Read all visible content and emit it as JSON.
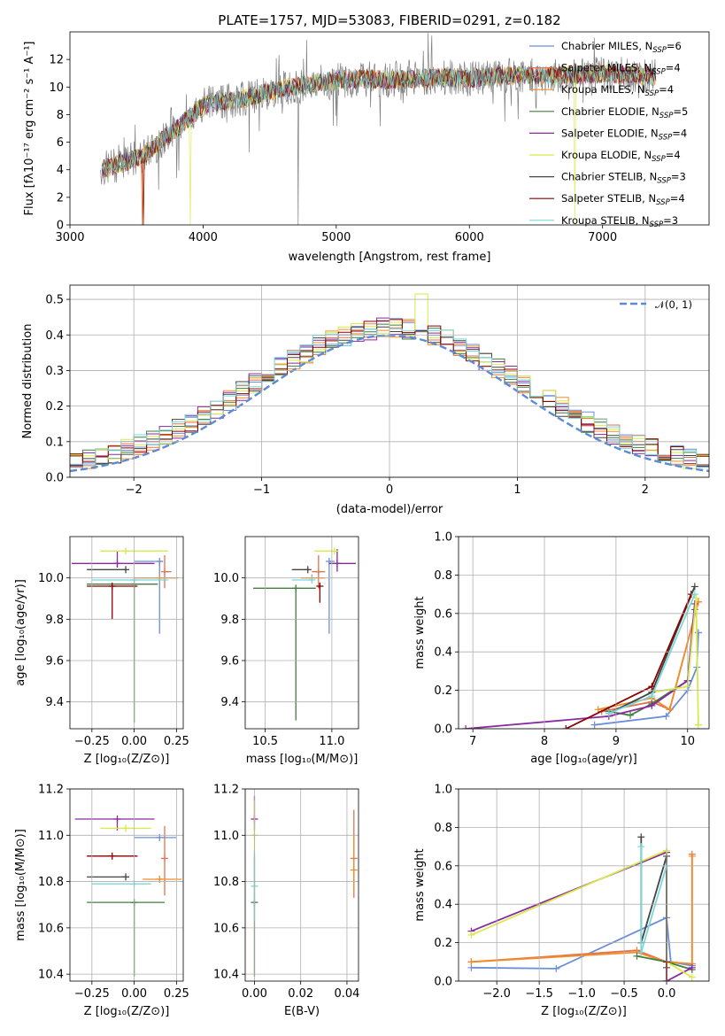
{
  "figure": {
    "title": "PLATE=1757, MJD=53083, FIBERID=0291, z=0.182"
  },
  "colors": {
    "Chabrier MILES": "#6a8fd8",
    "Salpeter MILES": "#e2724f",
    "Kroupa MILES": "#f28c28",
    "Chabrier ELODIE": "#3f7f3f",
    "Salpeter ELODIE": "#8b2a9e",
    "Kroupa ELODIE": "#d9e84a",
    "Chabrier STELIB": "#444444",
    "Salpeter STELIB": "#8b0000",
    "Kroupa STELIB": "#7ad8d8",
    "data": "#808080",
    "gauss": "#5b8bd6"
  },
  "chart_data": [
    {
      "id": "spectrum",
      "type": "line",
      "title": "PLATE=1757, MJD=53083, FIBERID=0291, z=0.182",
      "xlabel": "wavelength [Angstrom, rest frame]",
      "ylabel": "Flux [fλ10⁻¹⁷ erg cm⁻² s⁻¹ A⁻¹]",
      "xlim": [
        3000,
        7800
      ],
      "ylim": [
        0,
        14
      ],
      "xticks": [
        "3000",
        "4000",
        "5000",
        "6000",
        "7000"
      ],
      "yticks": [
        "0",
        "2",
        "4",
        "6",
        "8",
        "10",
        "12"
      ],
      "grid": false,
      "legend": "right",
      "legend_entries": [
        {
          "label": "Chabrier MILES, N",
          "sub": "SSP",
          "suffix": "=6",
          "series": "Chabrier MILES"
        },
        {
          "label": "Salpeter MILES, N",
          "sub": "SSP",
          "suffix": "=4",
          "series": "Salpeter MILES"
        },
        {
          "label": "Kroupa MILES, N",
          "sub": "SSP",
          "suffix": "=4",
          "series": "Kroupa MILES"
        },
        {
          "label": "Chabrier ELODIE, N",
          "sub": "SSP",
          "suffix": "=5",
          "series": "Chabrier ELODIE"
        },
        {
          "label": "Salpeter ELODIE, N",
          "sub": "SSP",
          "suffix": "=4",
          "series": "Salpeter ELODIE"
        },
        {
          "label": "Kroupa ELODIE, N",
          "sub": "SSP",
          "suffix": "=4",
          "series": "Kroupa ELODIE"
        },
        {
          "label": "Chabrier STELIB, N",
          "sub": "SSP",
          "suffix": "=3",
          "series": "Chabrier STELIB"
        },
        {
          "label": "Salpeter STELIB, N",
          "sub": "SSP",
          "suffix": "=4",
          "series": "Salpeter STELIB"
        },
        {
          "label": "Kroupa STELIB, N",
          "sub": "SSP",
          "suffix": "=3",
          "series": "Kroupa STELIB"
        }
      ],
      "continuum": {
        "x": [
          3230,
          3400,
          3550,
          3700,
          3850,
          3950,
          4050,
          4200,
          4400,
          4600,
          4800,
          5000,
          5200,
          5400,
          5600,
          5800,
          6000,
          6200,
          6400,
          6600,
          6800,
          7000,
          7200,
          7400
        ],
        "y": [
          4.0,
          4.5,
          5.0,
          6.2,
          7.4,
          8.2,
          8.9,
          9.0,
          9.4,
          9.9,
          10.2,
          10.5,
          10.6,
          10.5,
          10.6,
          10.7,
          10.6,
          10.8,
          10.9,
          10.8,
          10.9,
          11.0,
          10.9,
          10.8
        ]
      }
    },
    {
      "id": "residuals",
      "type": "histogram",
      "xlabel": "(data-model)/error",
      "ylabel": "Normed distribution",
      "xlim": [
        -2.5,
        2.5
      ],
      "ylim": [
        0,
        0.54
      ],
      "xticks": [
        "−2",
        "−1",
        "0",
        "1",
        "2"
      ],
      "yticks": [
        "0.0",
        "0.1",
        "0.2",
        "0.3",
        "0.4",
        "0.5"
      ],
      "grid": true,
      "legend": "top-right",
      "gauss_label": "𝒩(0, 1)",
      "bin_width": 0.1
    },
    {
      "id": "age_vs_Z",
      "type": "scatter",
      "xlabel": "Z [log₁₀(Z/Z⊙)]",
      "ylabel": "age  [log₁₀(age/yr)]",
      "xlim": [
        -0.38,
        0.29
      ],
      "ylim": [
        9.27,
        10.2
      ],
      "xticks": [
        "−0.25",
        "0.00",
        "0.25"
      ],
      "yticks": [
        "9.4",
        "9.6",
        "9.8",
        "10.0"
      ],
      "grid": true,
      "points": [
        {
          "series": "Chabrier MILES",
          "x": 0.15,
          "y": 10.08,
          "xerr": [
            0.15,
            0.02
          ],
          "yerr": [
            0.35,
            0.0
          ]
        },
        {
          "series": "Salpeter MILES",
          "x": 0.18,
          "y": 10.03,
          "xerr": [
            0.0,
            0.04
          ],
          "yerr": [
            0.08,
            0.08
          ]
        },
        {
          "series": "Kroupa MILES",
          "x": 0.15,
          "y": 10.0,
          "xerr": [
            0.15,
            0.11
          ],
          "yerr": [
            0.0,
            0.0
          ]
        },
        {
          "series": "Chabrier ELODIE",
          "x": 0.0,
          "y": 9.97,
          "xerr": [
            0.28,
            0.14
          ],
          "yerr": [
            0.67,
            0.0
          ]
        },
        {
          "series": "Salpeter ELODIE",
          "x": -0.1,
          "y": 10.07,
          "xerr": [
            0.27,
            0.22
          ],
          "yerr": [
            0.02,
            0.06
          ]
        },
        {
          "series": "Kroupa ELODIE",
          "x": -0.05,
          "y": 10.13,
          "xerr": [
            0.15,
            0.25
          ],
          "yerr": [
            0.0,
            0.0
          ]
        },
        {
          "series": "Chabrier STELIB",
          "x": -0.05,
          "y": 10.04,
          "xerr": [
            0.23,
            0.0
          ],
          "yerr": [
            0.0,
            0.0
          ]
        },
        {
          "series": "Salpeter STELIB",
          "x": -0.13,
          "y": 9.96,
          "xerr": [
            0.15,
            0.15
          ],
          "yerr": [
            0.16,
            0.0
          ]
        },
        {
          "series": "Kroupa STELIB",
          "x": 0.0,
          "y": 9.99,
          "xerr": [
            0.25,
            0.2
          ],
          "yerr": [
            0.0,
            0.0
          ]
        }
      ]
    },
    {
      "id": "age_vs_mass",
      "type": "scatter",
      "xlabel": "mass [log₁₀(M/M⊙)]",
      "ylabel": "",
      "xlim": [
        10.35,
        11.2
      ],
      "ylim": [
        9.27,
        10.2
      ],
      "xticks": [
        "10.5",
        "11.0"
      ],
      "yticks": [
        "9.4",
        "9.6",
        "9.8",
        "10.0"
      ],
      "grid": true,
      "points": [
        {
          "series": "Chabrier MILES",
          "x": 10.98,
          "y": 10.08,
          "xerr": [
            0.0,
            0.04
          ],
          "yerr": [
            0.35,
            0.0
          ]
        },
        {
          "series": "Salpeter MILES",
          "x": 10.9,
          "y": 10.03,
          "xerr": [
            0.05,
            0.05
          ],
          "yerr": [
            0.08,
            0.08
          ]
        },
        {
          "series": "Kroupa MILES",
          "x": 10.85,
          "y": 10.0,
          "xerr": [
            0.08,
            0.1
          ],
          "yerr": [
            0.0,
            0.0
          ]
        },
        {
          "series": "Chabrier ELODIE",
          "x": 10.73,
          "y": 9.95,
          "xerr": [
            0.32,
            0.15
          ],
          "yerr": [
            0.64,
            0.0
          ]
        },
        {
          "series": "Salpeter ELODIE",
          "x": 11.04,
          "y": 10.07,
          "xerr": [
            0.06,
            0.14
          ],
          "yerr": [
            0.04,
            0.07
          ]
        },
        {
          "series": "Kroupa ELODIE",
          "x": 11.02,
          "y": 10.13,
          "xerr": [
            0.15,
            0.0
          ],
          "yerr": [
            0.0,
            0.0
          ]
        },
        {
          "series": "Chabrier STELIB",
          "x": 10.82,
          "y": 10.04,
          "xerr": [
            0.12,
            0.0
          ],
          "yerr": [
            0.0,
            0.0
          ]
        },
        {
          "series": "Salpeter STELIB",
          "x": 10.91,
          "y": 9.96,
          "xerr": [
            0.0,
            0.0
          ],
          "yerr": [
            0.08,
            0.0
          ]
        },
        {
          "series": "Kroupa STELIB",
          "x": 10.85,
          "y": 9.99,
          "xerr": [
            0.15,
            0.0
          ],
          "yerr": [
            0.0,
            0.0
          ]
        }
      ]
    },
    {
      "id": "weight_vs_age",
      "type": "line",
      "xlabel": "age  [log₁₀(age/yr)]",
      "ylabel": "mass weight",
      "xlim": [
        6.8,
        10.3
      ],
      "ylim": [
        0,
        1.0
      ],
      "xticks": [
        "7",
        "8",
        "9",
        "10"
      ],
      "yticks": [
        "0.0",
        "0.2",
        "0.4",
        "0.6",
        "0.8",
        "1.0"
      ],
      "grid": true,
      "series": [
        {
          "name": "Chabrier MILES",
          "x": [
            8.7,
            9.7,
            10.0,
            10.13,
            10.15,
            10.15
          ],
          "y": [
            0.02,
            0.065,
            0.2,
            0.32,
            0.5,
            0.5
          ]
        },
        {
          "name": "Salpeter MILES",
          "x": [
            8.8,
            9.5,
            9.75,
            10.15
          ],
          "y": [
            0.09,
            0.14,
            0.1,
            0.66
          ]
        },
        {
          "name": "Kroupa MILES",
          "x": [
            8.75,
            9.5,
            9.75,
            10.15
          ],
          "y": [
            0.1,
            0.16,
            0.1,
            0.66
          ]
        },
        {
          "name": "Chabrier ELODIE",
          "x": [
            8.9,
            9.2,
            9.5,
            10.0,
            10.1
          ],
          "y": [
            0.09,
            0.07,
            0.13,
            0.25,
            0.62
          ]
        },
        {
          "name": "Salpeter ELODIE",
          "x": [
            6.9,
            8.9,
            9.5,
            10.0,
            10.1
          ],
          "y": [
            0.0,
            0.065,
            0.12,
            0.25,
            0.65
          ]
        },
        {
          "name": "Kroupa ELODIE",
          "x": [
            9.5,
            10.0,
            10.12,
            10.15,
            10.15
          ],
          "y": [
            0.19,
            0.22,
            0.68,
            0.02,
            0.02
          ]
        },
        {
          "name": "Chabrier STELIB",
          "x": [
            8.9,
            9.5,
            10.1
          ],
          "y": [
            0.08,
            0.19,
            0.74
          ]
        },
        {
          "name": "Salpeter STELIB",
          "x": [
            8.3,
            9.5,
            10.05
          ],
          "y": [
            0.0,
            0.22,
            0.7
          ]
        },
        {
          "name": "Kroupa STELIB",
          "x": [
            8.9,
            9.5,
            10.1
          ],
          "y": [
            0.08,
            0.17,
            0.7
          ]
        }
      ]
    },
    {
      "id": "mass_vs_Z",
      "type": "scatter",
      "xlabel": "Z [log₁₀(Z/Z⊙)]",
      "ylabel": "mass [log₁₀(M/M⊙)]",
      "xlim": [
        -0.38,
        0.29
      ],
      "ylim": [
        10.37,
        11.2
      ],
      "xticks": [
        "−0.25",
        "0.00",
        "0.25"
      ],
      "yticks": [
        "10.4",
        "10.6",
        "10.8",
        "11.0",
        "11.2"
      ],
      "grid": true,
      "points": [
        {
          "series": "Chabrier MILES",
          "x": 0.15,
          "y": 10.99,
          "xerr": [
            0.15,
            0.1
          ],
          "yerr": [
            0.0,
            0.0
          ]
        },
        {
          "series": "Salpeter MILES",
          "x": 0.18,
          "y": 10.9,
          "xerr": [
            0.0,
            0.0
          ],
          "yerr": [
            0.16,
            0.14
          ]
        },
        {
          "series": "Kroupa MILES",
          "x": 0.15,
          "y": 10.81,
          "xerr": [
            0.1,
            0.13
          ],
          "yerr": [
            0.0,
            0.0
          ]
        },
        {
          "series": "Chabrier ELODIE",
          "x": 0.0,
          "y": 10.71,
          "xerr": [
            0.28,
            0.18
          ],
          "yerr": [
            0.32,
            0.0
          ]
        },
        {
          "series": "Salpeter ELODIE",
          "x": -0.1,
          "y": 11.07,
          "xerr": [
            0.25,
            0.22
          ],
          "yerr": [
            0.05,
            0.0
          ]
        },
        {
          "series": "Kroupa ELODIE",
          "x": -0.05,
          "y": 11.03,
          "xerr": [
            0.15,
            0.15
          ],
          "yerr": [
            0.0,
            0.0
          ]
        },
        {
          "series": "Chabrier STELIB",
          "x": -0.05,
          "y": 10.82,
          "xerr": [
            0.23,
            0.0
          ],
          "yerr": [
            0.0,
            0.0
          ]
        },
        {
          "series": "Salpeter STELIB",
          "x": -0.13,
          "y": 10.91,
          "xerr": [
            0.15,
            0.15
          ],
          "yerr": [
            0.0,
            0.0
          ]
        },
        {
          "series": "Kroupa STELIB",
          "x": 0.0,
          "y": 10.79,
          "xerr": [
            0.25,
            0.1
          ],
          "yerr": [
            0.0,
            0.0
          ]
        }
      ]
    },
    {
      "id": "mass_vs_EBV",
      "type": "scatter",
      "xlabel": "E(B-V)",
      "ylabel": "",
      "xlim": [
        -0.004,
        0.045
      ],
      "ylim": [
        10.37,
        11.2
      ],
      "xticks": [
        "0.00",
        "0.02",
        "0.04"
      ],
      "yticks": [
        "10.4",
        "10.6",
        "10.8",
        "11.0",
        "11.2"
      ],
      "grid": true,
      "points": [
        {
          "series": "Salpeter MILES",
          "x": 0.043,
          "y": 10.9,
          "xerr": [
            0.0,
            0.0
          ],
          "yerr": [
            0.17,
            0.21
          ]
        },
        {
          "series": "Kroupa MILES",
          "x": 0.043,
          "y": 10.85,
          "xerr": [
            0.0,
            0.0
          ],
          "yerr": [
            0.1,
            0.15
          ]
        },
        {
          "series": "Chabrier ELODIE",
          "x": 0.0,
          "y": 10.71,
          "xerr": [
            0.0,
            0.0
          ],
          "yerr": [
            0.32,
            0.2
          ]
        },
        {
          "series": "Salpeter ELODIE",
          "x": 0.0,
          "y": 11.07,
          "xerr": [
            0.0,
            0.0
          ],
          "yerr": [
            0.05,
            0.1
          ]
        },
        {
          "series": "Kroupa ELODIE",
          "x": 0.0,
          "y": 11.0,
          "xerr": [
            0.0,
            0.0
          ],
          "yerr": [
            0.1,
            0.15
          ]
        },
        {
          "series": "Kroupa STELIB",
          "x": 0.0,
          "y": 10.78,
          "xerr": [
            0.0,
            0.0
          ],
          "yerr": [
            0.15,
            0.15
          ]
        }
      ]
    },
    {
      "id": "weight_vs_Z",
      "type": "line",
      "xlabel": "Z [log₁₀(Z/Z⊙)]",
      "ylabel": "mass weight",
      "xlim": [
        -2.45,
        0.5
      ],
      "ylim": [
        0,
        1.0
      ],
      "xticks": [
        "−2.0",
        "−1.5",
        "−1.0",
        "−0.5",
        "0.0"
      ],
      "yticks": [
        "0.0",
        "0.2",
        "0.4",
        "0.6",
        "0.8",
        "1.0"
      ],
      "grid": true,
      "series": [
        {
          "name": "Chabrier MILES",
          "x": [
            -2.3,
            -1.3,
            0.0,
            0.05,
            0.3
          ],
          "y": [
            0.07,
            0.065,
            0.33,
            0.1,
            0.08
          ]
        },
        {
          "name": "Salpeter MILES",
          "x": [
            -2.3,
            -0.35,
            0.0,
            0.3,
            0.3
          ],
          "y": [
            0.1,
            0.16,
            0.1,
            0.09,
            0.66
          ]
        },
        {
          "name": "Kroupa MILES",
          "x": [
            -2.3,
            -0.35,
            0.0,
            0.3,
            0.3
          ],
          "y": [
            0.1,
            0.15,
            0.1,
            0.09,
            0.65
          ]
        },
        {
          "name": "Chabrier ELODIE",
          "x": [
            -0.35,
            0.0,
            0.3
          ],
          "y": [
            0.13,
            0.1,
            0.06
          ]
        },
        {
          "name": "Salpeter ELODIE",
          "x": [
            -2.3,
            0.0,
            0.0,
            0.3
          ],
          "y": [
            0.26,
            0.67,
            0.0,
            0.07
          ]
        },
        {
          "name": "Kroupa ELODIE",
          "x": [
            -2.3,
            0.0,
            0.0,
            0.3
          ],
          "y": [
            0.24,
            0.68,
            0.1,
            0.02
          ]
        },
        {
          "name": "Chabrier STELIB",
          "x": [
            -0.3,
            -0.3,
            0.0,
            0.0
          ],
          "y": [
            0.75,
            0.2,
            0.65,
            0.07
          ]
        },
        {
          "name": "Salpeter STELIB",
          "x": [
            0.0,
            0.0
          ],
          "y": [
            0.1,
            0.0
          ]
        },
        {
          "name": "Kroupa STELIB",
          "x": [
            -0.3,
            -0.3,
            0.0
          ],
          "y": [
            0.7,
            0.15,
            0.6
          ]
        }
      ]
    }
  ]
}
